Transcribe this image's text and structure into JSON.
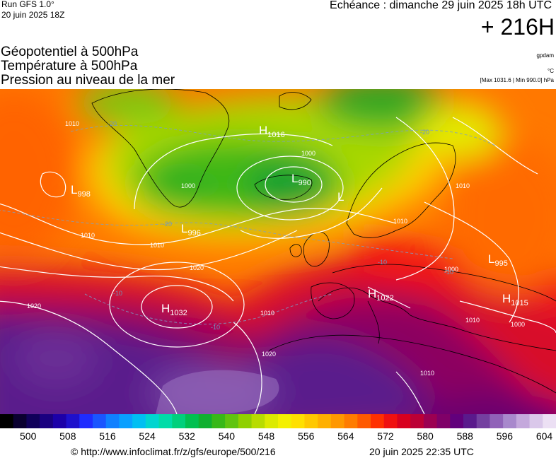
{
  "header": {
    "run": "Run GFS 1.0°",
    "run_date": "20 juin 2025 18Z",
    "valid": "Echéance : dimanche 29 juin 2025 18h UTC",
    "lead": "+ 216H"
  },
  "titles": {
    "line1": "Géopotentiel à 500hPa",
    "line2": "Température à 500hPa",
    "line3": "Pression au niveau de la mer"
  },
  "units": {
    "geopotential": "gpdam",
    "temperature": "°C",
    "pressure_range": "[Max 1031.6 | Min 990.0] hPa"
  },
  "colorbar": {
    "ticks": [
      "500",
      "508",
      "516",
      "524",
      "532",
      "540",
      "548",
      "556",
      "564",
      "572",
      "580",
      "588",
      "596",
      "604"
    ],
    "colors": [
      "#000000",
      "#0a0030",
      "#10005a",
      "#1a0080",
      "#1c00a8",
      "#1e10cc",
      "#1f2cff",
      "#1a55ff",
      "#1080ff",
      "#0aa0ff",
      "#00bff2",
      "#00d5d0",
      "#00dca8",
      "#00d07c",
      "#00c050",
      "#10b030",
      "#38b818",
      "#60c410",
      "#90d000",
      "#b8dc00",
      "#dcea00",
      "#f4f000",
      "#ffe000",
      "#ffc800",
      "#ffb000",
      "#ff9800",
      "#ff7c00",
      "#ff5a00",
      "#ff3000",
      "#f01010",
      "#d8001e",
      "#bc0036",
      "#9c0052",
      "#800068",
      "#62007c",
      "#5a1a8c",
      "#7440a0",
      "#9062b8",
      "#a888cc",
      "#c4a8dc",
      "#dac8ea",
      "#ece0f4"
    ]
  },
  "map": {
    "pressure_centers": [
      {
        "type": "H",
        "value": "1016"
      },
      {
        "type": "L",
        "value": "990"
      },
      {
        "type": "L",
        "value": "998"
      },
      {
        "type": "L",
        "value": "996"
      },
      {
        "type": "L",
        "value": ""
      },
      {
        "type": "L",
        "value": "995"
      },
      {
        "type": "H",
        "value": "1032"
      },
      {
        "type": "H",
        "value": "1022"
      },
      {
        "type": "H",
        "value": "1015"
      }
    ],
    "isobar_labels": [
      "1010",
      "1000",
      "1010",
      "1010",
      "1020",
      "1020",
      "1020",
      "1010",
      "1000",
      "1010",
      "1010",
      "1000",
      "1010",
      "1010",
      "1000"
    ],
    "temperature_labels": [
      "-20",
      "-20",
      "-20",
      "-10",
      "-10",
      "-10",
      "-10"
    ]
  },
  "footer": {
    "url": "© http://www.infoclimat.fr/z/gfs/europe/500/216",
    "generated": "20 juin 2025 22:35 UTC"
  }
}
